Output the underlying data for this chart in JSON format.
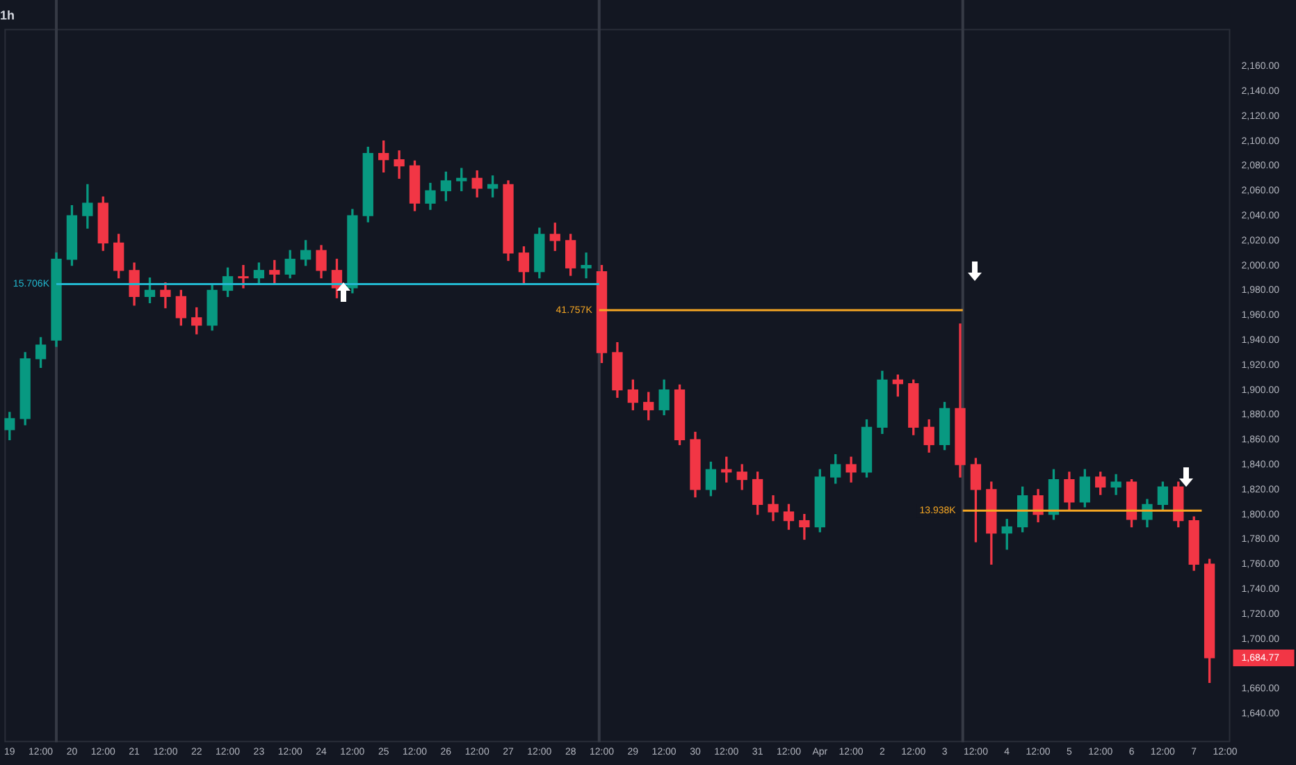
{
  "chart_data": {
    "type": "candlestick",
    "title": "1h",
    "x": [
      "--03-19T00:00",
      "--03-19T06:00",
      "--03-19T12:00",
      "--03-19T18:00",
      "--03-20T00:00",
      "--03-20T06:00",
      "--03-20T12:00",
      "--03-20T18:00",
      "--03-21T00:00",
      "--03-21T06:00",
      "--03-21T12:00",
      "--03-21T18:00",
      "--03-22T00:00",
      "--03-22T06:00",
      "--03-22T12:00",
      "--03-22T18:00",
      "--03-23T00:00",
      "--03-23T06:00",
      "--03-23T12:00",
      "--03-23T18:00",
      "--03-24T00:00",
      "--03-24T06:00",
      "--03-24T12:00",
      "--03-24T18:00",
      "--03-25T00:00",
      "--03-25T06:00",
      "--03-25T12:00",
      "--03-25T18:00",
      "--03-26T00:00",
      "--03-26T06:00",
      "--03-26T12:00",
      "--03-26T18:00",
      "--03-27T00:00",
      "--03-27T06:00",
      "--03-27T12:00",
      "--03-27T18:00",
      "--03-28T00:00",
      "--03-28T06:00",
      "--03-28T12:00",
      "--03-28T18:00",
      "--03-29T00:00",
      "--03-29T06:00",
      "--03-29T12:00",
      "--03-29T18:00",
      "--03-30T00:00",
      "--03-30T06:00",
      "--03-30T12:00",
      "--03-30T18:00",
      "--03-31T00:00",
      "--03-31T06:00",
      "--03-31T12:00",
      "--03-31T18:00",
      "--04-01T00:00",
      "--04-01T06:00",
      "--04-01T12:00",
      "--04-01T18:00",
      "--04-02T00:00",
      "--04-02T06:00",
      "--04-02T12:00",
      "--04-02T18:00",
      "--04-03T00:00",
      "--04-03T06:00",
      "--04-03T12:00",
      "--04-03T18:00",
      "--04-04T00:00",
      "--04-04T06:00",
      "--04-04T12:00",
      "--04-04T18:00",
      "--04-05T00:00",
      "--04-05T06:00",
      "--04-05T12:00",
      "--04-05T18:00",
      "--04-06T00:00",
      "--04-06T06:00",
      "--04-06T12:00",
      "--04-06T18:00",
      "--04-07T00:00",
      "--04-07T06:00"
    ],
    "ohlc": [
      [
        1868,
        1882,
        1860,
        1877
      ],
      [
        1877,
        1930,
        1872,
        1925
      ],
      [
        1925,
        1942,
        1918,
        1936
      ],
      [
        1940,
        2010,
        1935,
        2005
      ],
      [
        2005,
        2048,
        2000,
        2040
      ],
      [
        2040,
        2065,
        2030,
        2050
      ],
      [
        2050,
        2055,
        2012,
        2018
      ],
      [
        2018,
        2025,
        1990,
        1996
      ],
      [
        1996,
        2002,
        1968,
        1975
      ],
      [
        1975,
        1990,
        1970,
        1980
      ],
      [
        1980,
        1986,
        1966,
        1975
      ],
      [
        1975,
        1980,
        1952,
        1958
      ],
      [
        1958,
        1966,
        1945,
        1952
      ],
      [
        1952,
        1985,
        1948,
        1980
      ],
      [
        1980,
        1998,
        1975,
        1991
      ],
      [
        1991,
        2000,
        1982,
        1990
      ],
      [
        1990,
        2002,
        1985,
        1996
      ],
      [
        1996,
        2004,
        1986,
        1993
      ],
      [
        1993,
        2012,
        1990,
        2005
      ],
      [
        2005,
        2020,
        2000,
        2012
      ],
      [
        2012,
        2016,
        1990,
        1996
      ],
      [
        1996,
        2005,
        1974,
        1982
      ],
      [
        1982,
        2045,
        1978,
        2040
      ],
      [
        2040,
        2095,
        2035,
        2090
      ],
      [
        2090,
        2100,
        2075,
        2085
      ],
      [
        2085,
        2092,
        2070,
        2080
      ],
      [
        2080,
        2084,
        2044,
        2050
      ],
      [
        2050,
        2066,
        2045,
        2060
      ],
      [
        2060,
        2075,
        2052,
        2068
      ],
      [
        2068,
        2078,
        2060,
        2070
      ],
      [
        2070,
        2076,
        2055,
        2062
      ],
      [
        2062,
        2072,
        2055,
        2065
      ],
      [
        2065,
        2068,
        2004,
        2010
      ],
      [
        2010,
        2015,
        1985,
        1995
      ],
      [
        1995,
        2030,
        1990,
        2025
      ],
      [
        2025,
        2034,
        2012,
        2020
      ],
      [
        2020,
        2025,
        1992,
        1998
      ],
      [
        1998,
        2010,
        1990,
        2000
      ],
      [
        1995,
        2000,
        1922,
        1930
      ],
      [
        1930,
        1938,
        1894,
        1900
      ],
      [
        1900,
        1908,
        1884,
        1890
      ],
      [
        1890,
        1898,
        1876,
        1884
      ],
      [
        1884,
        1908,
        1880,
        1900
      ],
      [
        1900,
        1904,
        1856,
        1860
      ],
      [
        1860,
        1866,
        1814,
        1820
      ],
      [
        1820,
        1842,
        1815,
        1836
      ],
      [
        1836,
        1846,
        1826,
        1834
      ],
      [
        1834,
        1840,
        1820,
        1828
      ],
      [
        1828,
        1834,
        1800,
        1808
      ],
      [
        1808,
        1815,
        1795,
        1802
      ],
      [
        1802,
        1808,
        1788,
        1795
      ],
      [
        1795,
        1800,
        1780,
        1790
      ],
      [
        1790,
        1836,
        1786,
        1830
      ],
      [
        1830,
        1848,
        1825,
        1840
      ],
      [
        1840,
        1846,
        1826,
        1834
      ],
      [
        1834,
        1876,
        1830,
        1870
      ],
      [
        1870,
        1915,
        1865,
        1908
      ],
      [
        1908,
        1912,
        1895,
        1905
      ],
      [
        1905,
        1908,
        1864,
        1870
      ],
      [
        1870,
        1876,
        1850,
        1856
      ],
      [
        1856,
        1890,
        1852,
        1885
      ],
      [
        1885,
        1953,
        1830,
        1840
      ],
      [
        1840,
        1845,
        1778,
        1820
      ],
      [
        1820,
        1826,
        1760,
        1785
      ],
      [
        1785,
        1796,
        1772,
        1790
      ],
      [
        1790,
        1822,
        1786,
        1815
      ],
      [
        1815,
        1820,
        1794,
        1800
      ],
      [
        1800,
        1836,
        1796,
        1828
      ],
      [
        1828,
        1834,
        1804,
        1810
      ],
      [
        1810,
        1836,
        1806,
        1830
      ],
      [
        1830,
        1834,
        1816,
        1822
      ],
      [
        1822,
        1832,
        1816,
        1826
      ],
      [
        1826,
        1828,
        1790,
        1796
      ],
      [
        1796,
        1812,
        1790,
        1808
      ],
      [
        1808,
        1826,
        1804,
        1822
      ],
      [
        1822,
        1826,
        1790,
        1795
      ],
      [
        1795,
        1798,
        1755,
        1760
      ],
      [
        1760,
        1764,
        1665,
        1684.77
      ]
    ],
    "series": [
      {
        "type": "line",
        "x": [
          "--03-19T18:00",
          "--03-28T11:00"
        ],
        "values": [
          1985,
          1985
        ],
        "color": "#22b8cf"
      },
      {
        "type": "line",
        "x": [
          "--03-28T11:00",
          "--04-03T07:00"
        ],
        "values": [
          1964,
          1964
        ],
        "color": "#f5a623"
      },
      {
        "type": "line",
        "x": [
          "--04-03T07:00",
          "--04-07T03:00"
        ],
        "values": [
          1803,
          1803
        ],
        "color": "#f5a623"
      }
    ],
    "ref_lines": [
      {
        "axis": "x",
        "value": "--03-19T18:00",
        "color": "#363a45"
      },
      {
        "axis": "x",
        "value": "--03-28T11:00",
        "color": "#363a45"
      },
      {
        "axis": "x",
        "value": "--04-03T07:00",
        "color": "#363a45"
      }
    ],
    "annotations": [
      {
        "text": "15.706K",
        "x": "--03-19T18:00",
        "y": 1985
      },
      {
        "text": "41.757K",
        "x": "--03-28T11:00",
        "y": 1964
      },
      {
        "text": "13.938K",
        "x": "--04-03T07:00",
        "y": 1803
      }
    ],
    "xlim": [
      "--03-18T22:00",
      "--04-07T14:00"
    ],
    "xticks": [
      {
        "value": "--03-19",
        "label": "19"
      },
      {
        "value": "--03-19T12:00",
        "label": "12:00"
      },
      {
        "value": "--03-20",
        "label": "20"
      },
      {
        "value": "--03-20T12:00",
        "label": "12:00"
      },
      {
        "value": "--03-21",
        "label": "21"
      },
      {
        "value": "--03-21T12:00",
        "label": "12:00"
      },
      {
        "value": "--03-22",
        "label": "22"
      },
      {
        "value": "--03-22T12:00",
        "label": "12:00"
      },
      {
        "value": "--03-23",
        "label": "23"
      },
      {
        "value": "--03-23T12:00",
        "label": "12:00"
      },
      {
        "value": "--03-24",
        "label": "24"
      },
      {
        "value": "--03-24T12:00",
        "label": "12:00"
      },
      {
        "value": "--03-25",
        "label": "25"
      },
      {
        "value": "--03-25T12:00",
        "label": "12:00"
      },
      {
        "value": "--03-26",
        "label": "26"
      },
      {
        "value": "--03-26T12:00",
        "label": "12:00"
      },
      {
        "value": "--03-27",
        "label": "27"
      },
      {
        "value": "--03-27T12:00",
        "label": "12:00"
      },
      {
        "value": "--03-28",
        "label": "28"
      },
      {
        "value": "--03-28T12:00",
        "label": "12:00"
      },
      {
        "value": "--03-29",
        "label": "29"
      },
      {
        "value": "--03-29T12:00",
        "label": "12:00"
      },
      {
        "value": "--03-30",
        "label": "30"
      },
      {
        "value": "--03-30T12:00",
        "label": "12:00"
      },
      {
        "value": "--03-31",
        "label": "31"
      },
      {
        "value": "--03-31T12:00",
        "label": "12:00"
      },
      {
        "value": "--04-01",
        "label": "Apr"
      },
      {
        "value": "--04-01T12:00",
        "label": "12:00"
      },
      {
        "value": "--04-02",
        "label": "2"
      },
      {
        "value": "--04-02T12:00",
        "label": "12:00"
      },
      {
        "value": "--04-03",
        "label": "3"
      },
      {
        "value": "--04-03T12:00",
        "label": "12:00"
      },
      {
        "value": "--04-04",
        "label": "4"
      },
      {
        "value": "--04-04T12:00",
        "label": "12:00"
      },
      {
        "value": "--04-05",
        "label": "5"
      },
      {
        "value": "--04-05T12:00",
        "label": "12:00"
      },
      {
        "value": "--04-06",
        "label": "6"
      },
      {
        "value": "--04-06T12:00",
        "label": "12:00"
      },
      {
        "value": "--04-07",
        "label": "7"
      },
      {
        "value": "--04-07T12:00",
        "label": "12:00"
      }
    ],
    "ylim": [
      1617,
      2190
    ],
    "yticks": [
      {
        "value": 1640,
        "label": "1,640.00"
      },
      {
        "value": 1660,
        "label": "1,660.00"
      },
      {
        "value": 1684.77,
        "label": "1,684.77"
      },
      {
        "value": 1700,
        "label": "1,700.00"
      },
      {
        "value": 1720,
        "label": "1,720.00"
      },
      {
        "value": 1740,
        "label": "1,740.00"
      },
      {
        "value": 1760,
        "label": "1,760.00"
      },
      {
        "value": 1780,
        "label": "1,780.00"
      },
      {
        "value": 1800,
        "label": "1,800.00"
      },
      {
        "value": 1820,
        "label": "1,820.00"
      },
      {
        "value": 1840,
        "label": "1,840.00"
      },
      {
        "value": 1860,
        "label": "1,860.00"
      },
      {
        "value": 1880,
        "label": "1,880.00"
      },
      {
        "value": 1900,
        "label": "1,900.00"
      },
      {
        "value": 1920,
        "label": "1,920.00"
      },
      {
        "value": 1940,
        "label": "1,940.00"
      },
      {
        "value": 1960,
        "label": "1,960.00"
      },
      {
        "value": 1980,
        "label": "1,980.00"
      },
      {
        "value": 2000,
        "label": "2,000.00"
      },
      {
        "value": 2020,
        "label": "2,020.00"
      },
      {
        "value": 2040,
        "label": "2,040.00"
      },
      {
        "value": 2060,
        "label": "2,060.00"
      },
      {
        "value": 2080,
        "label": "2,080.00"
      },
      {
        "value": 2100,
        "label": "2,100.00"
      },
      {
        "value": 2120,
        "label": "2,120.00"
      },
      {
        "value": 2140,
        "label": "2,140.00"
      },
      {
        "value": 2160,
        "label": "2,160.00"
      }
    ]
  }
}
